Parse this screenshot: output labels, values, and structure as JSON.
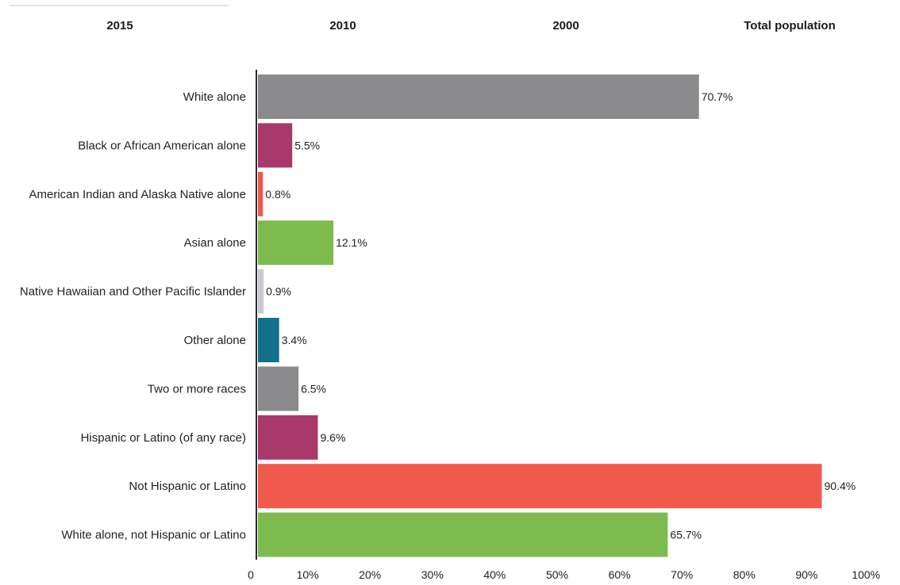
{
  "tabs": [
    {
      "label": "2015"
    },
    {
      "label": "2010"
    },
    {
      "label": "2000"
    },
    {
      "label": "Total population"
    }
  ],
  "chart_data": {
    "type": "bar",
    "orientation": "horizontal",
    "categories": [
      "White alone",
      "Black or African American alone",
      "American Indian and Alaska Native alone",
      "Asian alone",
      "Native Hawaiian and Other Pacific Islander",
      "Other alone",
      "Two or more races",
      "Hispanic or Latino (of any race)",
      "Not Hispanic or Latino",
      "White alone, not Hispanic or Latino"
    ],
    "values": [
      70.7,
      5.5,
      0.8,
      12.1,
      0.9,
      3.4,
      6.5,
      9.6,
      90.4,
      65.7
    ],
    "value_labels": [
      "70.7%",
      "5.5%",
      "0.8%",
      "12.1%",
      "0.9%",
      "3.4%",
      "6.5%",
      "9.6%",
      "90.4%",
      "65.7%"
    ],
    "colors": [
      "#8a8a8c",
      "#a8396a",
      "#f05a4a",
      "#7dbb4e",
      "#c9c9d1",
      "#12708c",
      "#8a8a8c",
      "#a8396a",
      "#f05a4a",
      "#7dbb4e"
    ],
    "xlim": [
      0,
      100
    ],
    "x_ticks": [
      {
        "value": 0,
        "label": "0"
      },
      {
        "value": 10,
        "label": "10%"
      },
      {
        "value": 20,
        "label": "20%"
      },
      {
        "value": 30,
        "label": "30%"
      },
      {
        "value": 40,
        "label": "40%"
      },
      {
        "value": 50,
        "label": "50%"
      },
      {
        "value": 60,
        "label": "60%"
      },
      {
        "value": 70,
        "label": "70%"
      },
      {
        "value": 80,
        "label": "80%"
      },
      {
        "value": 90,
        "label": "90%"
      },
      {
        "value": 100,
        "label": "100%"
      }
    ],
    "grid": false,
    "legend": "none"
  }
}
